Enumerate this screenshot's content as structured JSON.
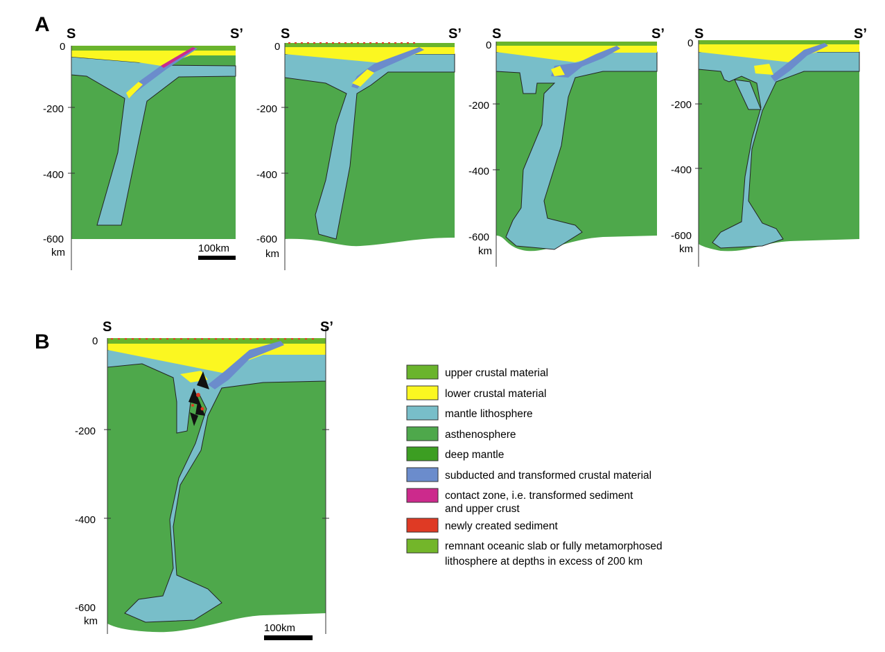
{
  "panels": {
    "a": {
      "letter": "A"
    },
    "b": {
      "letter": "B"
    }
  },
  "section": {
    "start": "S",
    "end": "S’"
  },
  "depth_axis": {
    "ticks": [
      "0",
      "-200",
      "-400",
      "-600"
    ],
    "unit": "km"
  },
  "scale_bar": {
    "label": "100km"
  },
  "legend": [
    {
      "label": "upper crustal material",
      "color": "#6ab42c"
    },
    {
      "label": "lower crustal material",
      "color": "#fbf721"
    },
    {
      "label": "mantle lithosphere",
      "color": "#78bec9"
    },
    {
      "label": "asthenosphere",
      "color": "#4ea84b"
    },
    {
      "label": "deep mantle",
      "color": "#3c9e22"
    },
    {
      "label": "subducted and transformed crustal material",
      "color": "#6b8ccc"
    },
    {
      "label": "contact zone, i.e. transformed sediment",
      "label2": "and upper crust",
      "color": "#cc2a8c"
    },
    {
      "label": "newly created sediment",
      "color": "#df3a24"
    },
    {
      "label": "remnant oceanic slab or fully metamorphosed",
      "label2": "lithosphere at depths in excess of 200 km",
      "color": "#73b62a"
    }
  ],
  "colors": {
    "upper_crust": "#6ab42c",
    "lower_crust": "#fbf721",
    "mantle_lithosphere": "#78bec9",
    "asthenosphere": "#4ea84b",
    "subducted": "#6b8ccc",
    "contact": "#cc2a8c",
    "sediment": "#df3a24",
    "outline": "#222222"
  }
}
